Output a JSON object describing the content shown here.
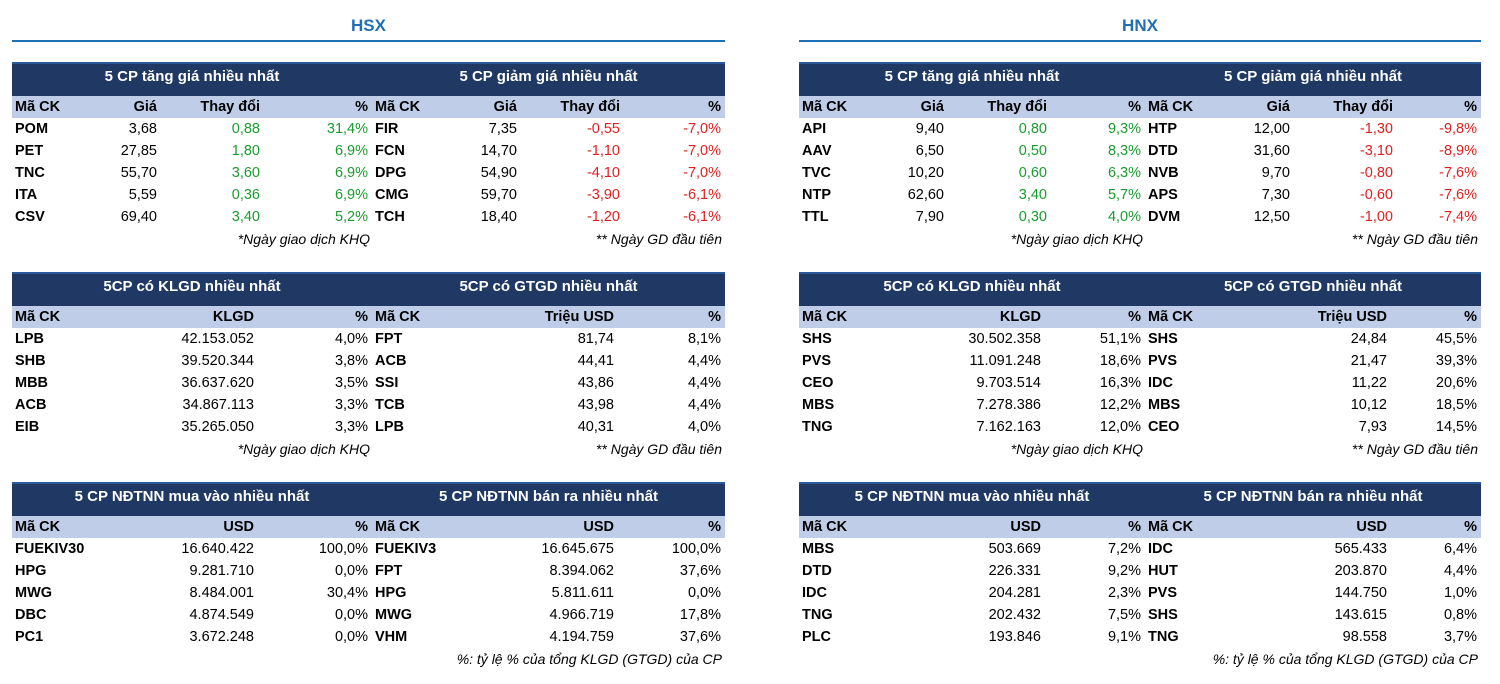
{
  "exchanges": {
    "hsx": {
      "title": "HSX",
      "movers": {
        "gainers": {
          "title": "5 CP tăng giá nhiều nhất",
          "headers": [
            "Mã CK",
            "Giá",
            "Thay đổi",
            "%"
          ],
          "rows": [
            [
              "POM",
              "3,68",
              "0,88",
              "31,4%"
            ],
            [
              "PET",
              "27,85",
              "1,80",
              "6,9%"
            ],
            [
              "TNC",
              "55,70",
              "3,60",
              "6,9%"
            ],
            [
              "ITA",
              "5,59",
              "0,36",
              "6,9%"
            ],
            [
              "CSV",
              "69,40",
              "3,40",
              "5,2%"
            ]
          ],
          "note": "*Ngày giao dịch KHQ"
        },
        "losers": {
          "title": "5 CP giảm giá nhiều nhất",
          "headers": [
            "Mã CK",
            "Giá",
            "Thay đổi",
            "%"
          ],
          "rows": [
            [
              "FIR",
              "7,35",
              "-0,55",
              "-7,0%"
            ],
            [
              "FCN",
              "14,70",
              "-1,10",
              "-7,0%"
            ],
            [
              "DPG",
              "54,90",
              "-4,10",
              "-7,0%"
            ],
            [
              "CMG",
              "59,70",
              "-3,90",
              "-6,1%"
            ],
            [
              "TCH",
              "18,40",
              "-1,20",
              "-6,1%"
            ]
          ],
          "note": "** Ngày GD đầu tiên"
        }
      },
      "volume": {
        "klgd": {
          "title": "5CP có KLGD nhiều nhất",
          "headers": [
            "Mã CK",
            "KLGD",
            "%"
          ],
          "rows": [
            [
              "LPB",
              "42.153.052",
              "4,0%"
            ],
            [
              "SHB",
              "39.520.344",
              "3,8%"
            ],
            [
              "MBB",
              "36.637.620",
              "3,5%"
            ],
            [
              "ACB",
              "34.867.113",
              "3,3%"
            ],
            [
              "EIB",
              "35.265.050",
              "3,3%"
            ]
          ],
          "note": "*Ngày giao dịch KHQ"
        },
        "gtgd": {
          "title": "5CP có GTGD nhiều nhất",
          "headers": [
            "Mã CK",
            "Triệu USD",
            "%"
          ],
          "rows": [
            [
              "FPT",
              "81,74",
              "8,1%"
            ],
            [
              "ACB",
              "44,41",
              "4,4%"
            ],
            [
              "SSI",
              "43,86",
              "4,4%"
            ],
            [
              "TCB",
              "43,98",
              "4,4%"
            ],
            [
              "LPB",
              "40,31",
              "4,0%"
            ]
          ],
          "note": "** Ngày GD đầu tiên"
        }
      },
      "foreign": {
        "buy": {
          "title": "5 CP NĐTNN mua vào nhiều nhất",
          "headers": [
            "Mã CK",
            "USD",
            "%"
          ],
          "rows": [
            [
              "FUEKIV30",
              "16.640.422",
              "100,0%"
            ],
            [
              "HPG",
              "9.281.710",
              "0,0%"
            ],
            [
              "MWG",
              "8.484.001",
              "30,4%"
            ],
            [
              "DBC",
              "4.874.549",
              "0,0%"
            ],
            [
              "PC1",
              "3.672.248",
              "0,0%"
            ]
          ]
        },
        "sell": {
          "title": "5 CP NĐTNN bán ra nhiều nhất",
          "headers": [
            "Mã CK",
            "USD",
            "%"
          ],
          "rows": [
            [
              "FUEKIV3",
              "16.645.675",
              "100,0%"
            ],
            [
              "FPT",
              "8.394.062",
              "37,6%"
            ],
            [
              "HPG",
              "5.811.611",
              "0,0%"
            ],
            [
              "MWG",
              "4.966.719",
              "17,8%"
            ],
            [
              "VHM",
              "4.194.759",
              "37,6%"
            ]
          ],
          "note": "%: tỷ lệ % của tổng KLGD (GTGD) của CP"
        }
      }
    },
    "hnx": {
      "title": "HNX",
      "movers": {
        "gainers": {
          "title": "5 CP tăng giá nhiều nhất",
          "headers": [
            "Mã CK",
            "Giá",
            "Thay đổi",
            "%"
          ],
          "rows": [
            [
              "API",
              "9,40",
              "0,80",
              "9,3%"
            ],
            [
              "AAV",
              "6,50",
              "0,50",
              "8,3%"
            ],
            [
              "TVC",
              "10,20",
              "0,60",
              "6,3%"
            ],
            [
              "NTP",
              "62,60",
              "3,40",
              "5,7%"
            ],
            [
              "TTL",
              "7,90",
              "0,30",
              "4,0%"
            ]
          ],
          "note": "*Ngày giao dịch KHQ"
        },
        "losers": {
          "title": "5 CP giảm giá nhiều nhất",
          "headers": [
            "Mã CK",
            "Giá",
            "Thay đổi",
            "%"
          ],
          "rows": [
            [
              "HTP",
              "12,00",
              "-1,30",
              "-9,8%"
            ],
            [
              "DTD",
              "31,60",
              "-3,10",
              "-8,9%"
            ],
            [
              "NVB",
              "9,70",
              "-0,80",
              "-7,6%"
            ],
            [
              "APS",
              "7,30",
              "-0,60",
              "-7,6%"
            ],
            [
              "DVM",
              "12,50",
              "-1,00",
              "-7,4%"
            ]
          ],
          "note": "** Ngày GD đầu tiên"
        }
      },
      "volume": {
        "klgd": {
          "title": "5CP có KLGD nhiều nhất",
          "headers": [
            "Mã CK",
            "KLGD",
            "%"
          ],
          "rows": [
            [
              "SHS",
              "30.502.358",
              "51,1%"
            ],
            [
              "PVS",
              "11.091.248",
              "18,6%"
            ],
            [
              "CEO",
              "9.703.514",
              "16,3%"
            ],
            [
              "MBS",
              "7.278.386",
              "12,2%"
            ],
            [
              "TNG",
              "7.162.163",
              "12,0%"
            ]
          ],
          "note": "*Ngày giao dịch KHQ"
        },
        "gtgd": {
          "title": "5CP có GTGD nhiều nhất",
          "headers": [
            "Mã CK",
            "Triệu USD",
            "%"
          ],
          "rows": [
            [
              "SHS",
              "24,84",
              "45,5%"
            ],
            [
              "PVS",
              "21,47",
              "39,3%"
            ],
            [
              "IDC",
              "11,22",
              "20,6%"
            ],
            [
              "MBS",
              "10,12",
              "18,5%"
            ],
            [
              "CEO",
              "7,93",
              "14,5%"
            ]
          ],
          "note": "** Ngày GD đầu tiên"
        }
      },
      "foreign": {
        "buy": {
          "title": "5 CP NĐTNN mua vào nhiều nhất",
          "headers": [
            "Mã CK",
            "USD",
            "%"
          ],
          "rows": [
            [
              "MBS",
              "503.669",
              "7,2%"
            ],
            [
              "DTD",
              "226.331",
              "9,2%"
            ],
            [
              "IDC",
              "204.281",
              "2,3%"
            ],
            [
              "TNG",
              "202.432",
              "7,5%"
            ],
            [
              "PLC",
              "193.846",
              "9,1%"
            ]
          ]
        },
        "sell": {
          "title": "5 CP NĐTNN bán ra nhiều nhất",
          "headers": [
            "Mã CK",
            "USD",
            "%"
          ],
          "rows": [
            [
              "IDC",
              "565.433",
              "6,4%"
            ],
            [
              "HUT",
              "203.870",
              "4,4%"
            ],
            [
              "PVS",
              "144.750",
              "1,0%"
            ],
            [
              "SHS",
              "143.615",
              "0,8%"
            ],
            [
              "TNG",
              "98.558",
              "3,7%"
            ]
          ],
          "note": "%: tỷ lệ % của tổng KLGD (GTGD) của CP"
        }
      }
    }
  },
  "colors": {
    "band": "#1f3864",
    "header_row": "#bfcde9",
    "exchange_title": "#1f6fb5",
    "gain": "#1a9c2e",
    "loss": "#e02020"
  }
}
